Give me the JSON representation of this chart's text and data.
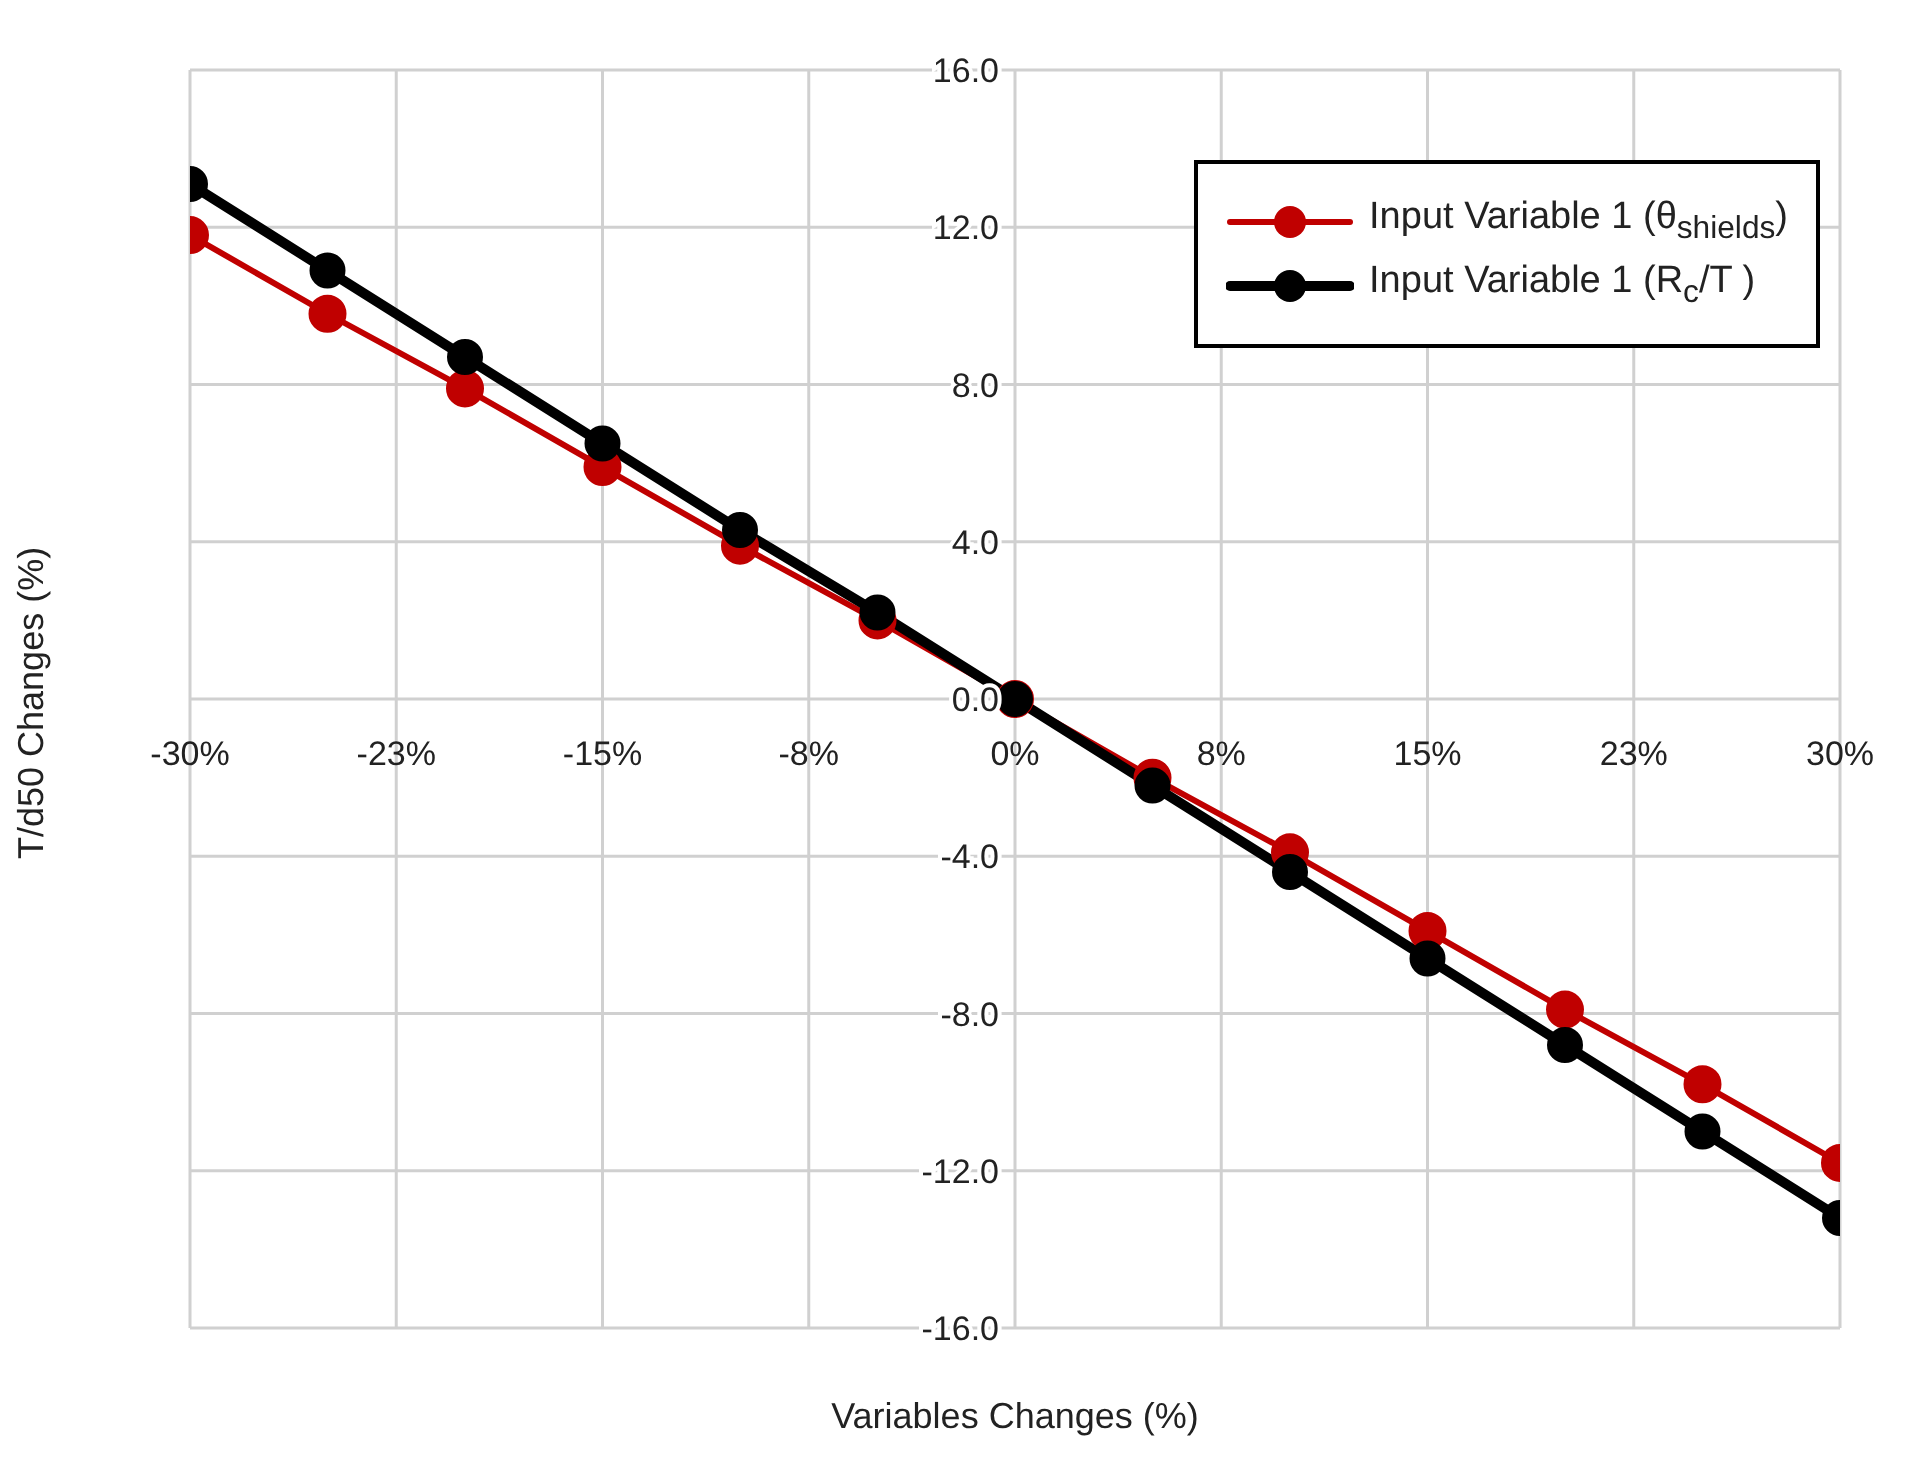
{
  "chart_data": {
    "type": "line",
    "xlabel": "Variables Changes (%)",
    "ylabel": "T/d50 Changes (%)",
    "x": [
      -30,
      -25,
      -20,
      -15,
      -10,
      -5,
      0,
      5,
      10,
      15,
      20,
      25,
      30
    ],
    "series": [
      {
        "name": "Input Variable 1 (θ$_{shields}$)",
        "color": "#c00000",
        "values": [
          11.8,
          9.8,
          7.9,
          5.9,
          3.9,
          2.0,
          0,
          -2.0,
          -3.9,
          -5.9,
          -7.9,
          -9.8,
          -11.8
        ]
      },
      {
        "name": "Input Variable 1 (R$_{c}$/T )",
        "color": "#000000",
        "values": [
          13.1,
          10.9,
          8.7,
          6.5,
          4.3,
          2.2,
          0,
          -2.2,
          -4.4,
          -6.6,
          -8.8,
          -11.0,
          -13.2
        ]
      }
    ],
    "xlim": [
      -30,
      30
    ],
    "xticks": [
      {
        "value": -30,
        "label": "-30%"
      },
      {
        "value": -22.5,
        "label": "-23%"
      },
      {
        "value": -15,
        "label": "-15%"
      },
      {
        "value": -7.5,
        "label": "-8%"
      },
      {
        "value": 0,
        "label": "0%"
      },
      {
        "value": 7.5,
        "label": "8%"
      },
      {
        "value": 15,
        "label": "15%"
      },
      {
        "value": 22.5,
        "label": "23%"
      },
      {
        "value": 30,
        "label": "30%"
      }
    ],
    "ylim": [
      -16,
      16
    ],
    "yticks": [
      {
        "value": -16,
        "label": "-16.0"
      },
      {
        "value": -12,
        "label": "-12.0"
      },
      {
        "value": -8,
        "label": "-8.0"
      },
      {
        "value": -4,
        "label": "-4.0"
      },
      {
        "value": 0,
        "label": "0.0"
      },
      {
        "value": 4,
        "label": "4.0"
      },
      {
        "value": 8,
        "label": "8.0"
      },
      {
        "value": 12,
        "label": "12.0"
      },
      {
        "value": 16,
        "label": "16.0"
      }
    ],
    "grid": true,
    "legend": "top right",
    "marker": "circle",
    "line_style": "solid"
  }
}
